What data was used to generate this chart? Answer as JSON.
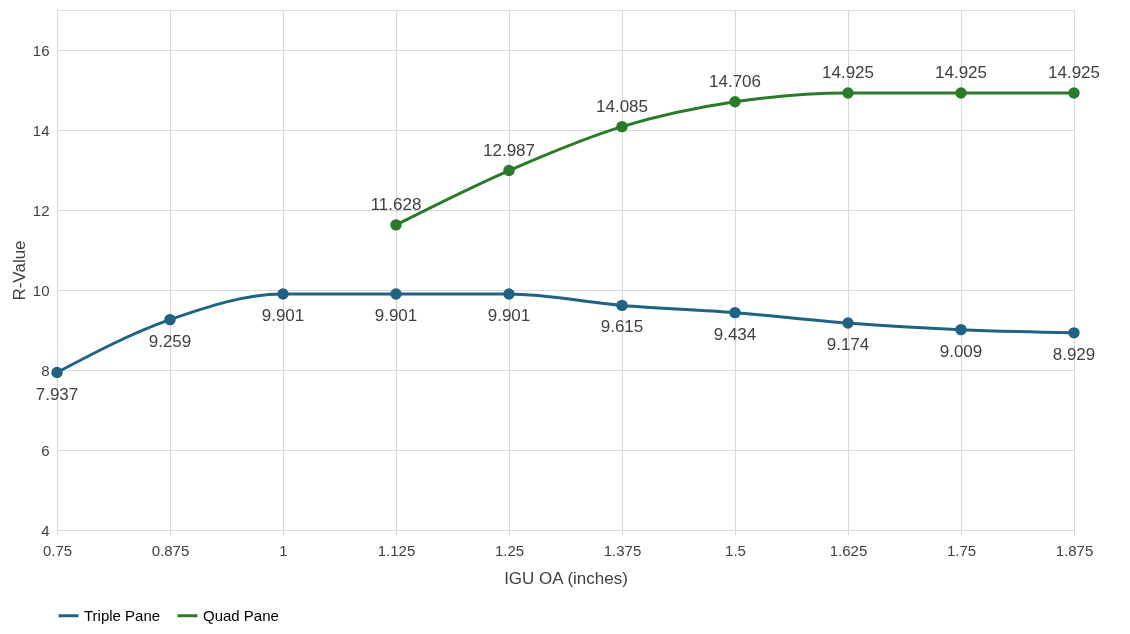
{
  "chart_data": {
    "type": "line",
    "xlabel": "IGU OA (inches)",
    "ylabel": "R-Value",
    "x": [
      0.75,
      0.875,
      1,
      1.125,
      1.25,
      1.375,
      1.5,
      1.625,
      1.75,
      1.875
    ],
    "series": [
      {
        "name": "Triple Pane",
        "color": "#1f6282",
        "values": [
          7.937,
          9.259,
          9.901,
          9.901,
          9.901,
          9.615,
          9.434,
          9.174,
          9.009,
          8.929
        ]
      },
      {
        "name": "Quad Pane",
        "color": "#2a7a2a",
        "values": [
          null,
          null,
          null,
          11.628,
          12.987,
          14.085,
          14.706,
          14.925,
          14.925,
          14.925
        ]
      }
    ],
    "xlim": [
      0.75,
      1.875
    ],
    "xticks": [
      0.75,
      0.875,
      1,
      1.125,
      1.25,
      1.375,
      1.5,
      1.625,
      1.75,
      1.875
    ],
    "ylim": [
      4,
      17
    ],
    "yticks": [
      4,
      6,
      8,
      10,
      12,
      14,
      16
    ],
    "grid": true,
    "legend": "bottom",
    "marker": "circle",
    "line_style": "solid",
    "data_labels": true
  }
}
